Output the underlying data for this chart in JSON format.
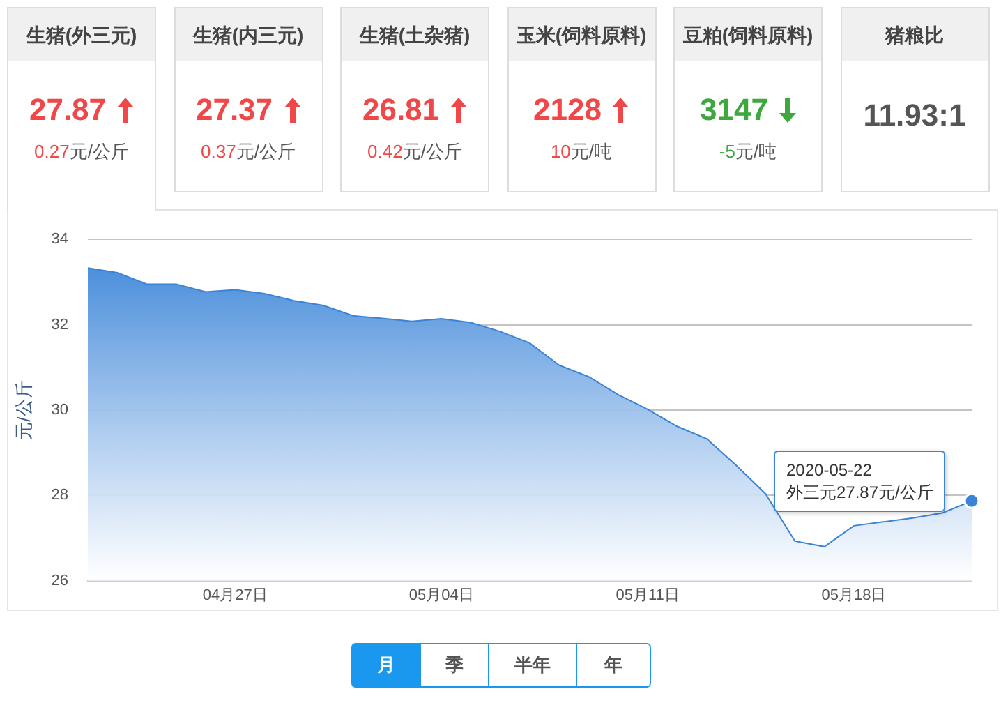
{
  "chart_data": [
    {
      "type": "other",
      "title": "生猪(外三元)",
      "annotations": [
        "27.87",
        "0.27元/公斤"
      ],
      "color": "#f04848"
    },
    {
      "type": "other",
      "title": "生猪(内三元)",
      "annotations": [
        "27.37",
        "0.37元/公斤"
      ],
      "color": "#f04848"
    },
    {
      "type": "other",
      "title": "生猪(土杂猪)",
      "annotations": [
        "26.81",
        "0.42元/公斤"
      ],
      "color": "#f04848"
    },
    {
      "type": "other",
      "title": "玉米(饲料原料)",
      "annotations": [
        "2128",
        "10元/吨"
      ],
      "color": "#f04848"
    },
    {
      "type": "other",
      "title": "豆粕(饲料原料)",
      "annotations": [
        "3147",
        "-5元/吨"
      ],
      "color": "#3ea83e"
    },
    {
      "type": "other",
      "title": "猪粮比",
      "annotations": [
        "11.93:1"
      ],
      "color": "#555555"
    },
    {
      "type": "area",
      "ylabel": "元/公斤",
      "categories": [
        null,
        null,
        null,
        null,
        null,
        "04月27日",
        null,
        null,
        null,
        null,
        null,
        null,
        "05月04日",
        null,
        null,
        null,
        null,
        null,
        null,
        "05月11日",
        null,
        null,
        null,
        null,
        null,
        null,
        "05月18日",
        null,
        null,
        null,
        null
      ],
      "values": [
        33.33,
        33.22,
        32.95,
        32.95,
        32.77,
        32.82,
        32.73,
        32.56,
        32.45,
        32.21,
        32.15,
        32.08,
        32.14,
        32.05,
        31.84,
        31.57,
        31.05,
        30.78,
        30.36,
        30.02,
        29.62,
        29.33,
        28.71,
        28.04,
        26.93,
        26.8,
        27.29,
        27.38,
        27.47,
        27.59,
        27.87
      ],
      "color": "#3a84d8",
      "ylim": [
        26,
        34
      ],
      "yticks": [
        26,
        28,
        30,
        32,
        34
      ],
      "grid": "y",
      "annotations": [
        "2020-05-22\n外三元27.87元/公斤"
      ]
    },
    {
      "type": "other",
      "annotations": [
        "月",
        "季",
        "半年",
        "年"
      ]
    }
  ]
}
